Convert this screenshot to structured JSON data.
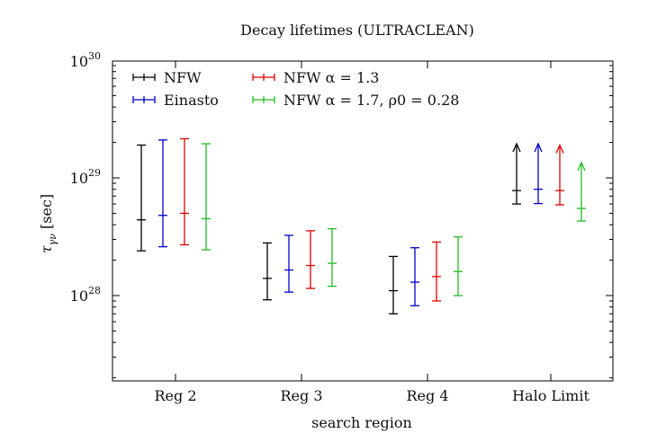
{
  "chart_data": {
    "type": "errorbar",
    "title": "Decay lifetimes (ULTRACLEAN)",
    "xlabel": "search region",
    "ylabel": "τ_γν [sec]",
    "yscale": "log",
    "ylim": [
      1e+27,
      1e+30
    ],
    "ytick_labels": [
      "10^28",
      "10^29",
      "10^30"
    ],
    "categories": [
      "Reg 2",
      "Reg 3",
      "Reg 4",
      "Halo Limit"
    ],
    "legend_position": "top-left",
    "series": [
      {
        "name": "NFW",
        "color": "#000000",
        "points": [
          {
            "center": 4.4e+28,
            "low": 2.4e+28,
            "high": 1.9e+29
          },
          {
            "center": 1.4e+28,
            "low": 9.2e+27,
            "high": 2.8e+28
          },
          {
            "center": 1.1e+28,
            "low": 7e+27,
            "high": 2.15e+28
          },
          {
            "center": 7.8e+28,
            "low": 6e+28,
            "high": 1.95e+29,
            "lower_limit": true
          }
        ]
      },
      {
        "name": "Einasto",
        "color": "#0000cc",
        "points": [
          {
            "center": 4.8e+28,
            "low": 2.6e+28,
            "high": 2.1e+29
          },
          {
            "center": 1.65e+28,
            "low": 1.07e+28,
            "high": 3.25e+28
          },
          {
            "center": 1.3e+28,
            "low": 8.2e+27,
            "high": 2.55e+28
          },
          {
            "center": 8e+28,
            "low": 6.05e+28,
            "high": 1.95e+29,
            "lower_limit": true
          }
        ]
      },
      {
        "name": "NFW α = 1.3",
        "color": "#e00000",
        "points": [
          {
            "center": 5e+28,
            "low": 2.7e+28,
            "high": 2.15e+29
          },
          {
            "center": 1.8e+28,
            "low": 1.15e+28,
            "high": 3.55e+28
          },
          {
            "center": 1.45e+28,
            "low": 9e+27,
            "high": 2.85e+28
          },
          {
            "center": 7.8e+28,
            "low": 5.9e+28,
            "high": 1.9e+29,
            "lower_limit": true
          }
        ]
      },
      {
        "name": "NFW α = 1.7, ρ0 = 0.28",
        "color": "#22bb22",
        "points": [
          {
            "center": 4.5e+28,
            "low": 2.45e+28,
            "high": 1.95e+29
          },
          {
            "center": 1.88e+28,
            "low": 1.2e+28,
            "high": 3.7e+28
          },
          {
            "center": 1.6e+28,
            "low": 1e+28,
            "high": 3.15e+28
          },
          {
            "center": 5.5e+28,
            "low": 4.3e+28,
            "high": 1.35e+29,
            "lower_limit": true
          }
        ]
      }
    ]
  }
}
